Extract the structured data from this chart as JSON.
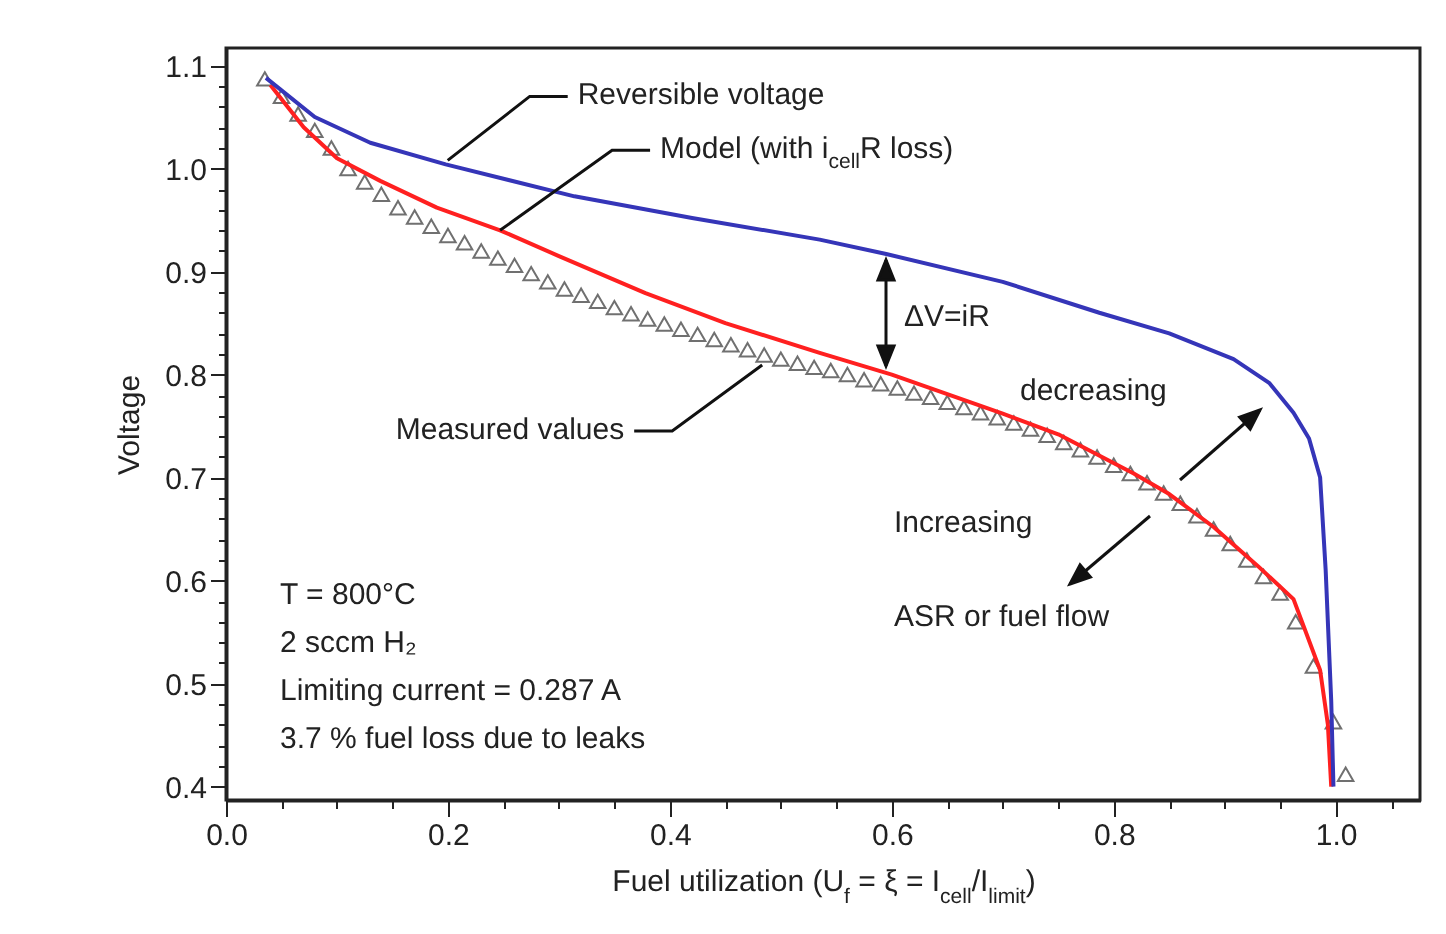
{
  "chart_data": {
    "type": "line",
    "xlabel": "Fuel utilization (U$_{f}$ = ξ = I$_{cell}$/I$_{limit}$)",
    "ylabel": "Voltage",
    "xlim": [
      0,
      1.076
    ],
    "ylim": [
      0.387,
      1.117
    ],
    "xticks": [
      {
        "value": 0,
        "label": "0.0"
      },
      {
        "value": 0.05,
        "label": null
      },
      {
        "value": 0.1,
        "label": null
      },
      {
        "value": 0.15,
        "label": null
      },
      0.2,
      {
        "value": 0.25,
        "label": null
      },
      {
        "value": 0.3,
        "label": null
      },
      {
        "value": 0.35,
        "label": null
      },
      0.4,
      {
        "value": 0.45,
        "label": null
      },
      {
        "value": 0.5,
        "label": null
      },
      {
        "value": 0.55,
        "label": null
      },
      0.6,
      {
        "value": 0.65,
        "label": null
      },
      {
        "value": 0.7,
        "label": null
      },
      {
        "value": 0.75,
        "label": null
      },
      0.8,
      {
        "value": 0.85,
        "label": null
      },
      {
        "value": 0.9,
        "label": null
      },
      {
        "value": 0.95,
        "label": null
      },
      {
        "value": 1,
        "label": "1.0"
      },
      {
        "value": 1.05,
        "label": null
      }
    ],
    "yticks": [
      0.4,
      {
        "value": 0.42,
        "label": null
      },
      {
        "value": 0.44,
        "label": null
      },
      {
        "value": 0.46,
        "label": null
      },
      {
        "value": 0.48,
        "label": null
      },
      0.5,
      {
        "value": 0.52,
        "label": null
      },
      {
        "value": 0.54,
        "label": null
      },
      {
        "value": 0.56,
        "label": null
      },
      {
        "value": 0.58,
        "label": null
      },
      0.6,
      {
        "value": 0.62,
        "label": null
      },
      {
        "value": 0.64,
        "label": null
      },
      {
        "value": 0.66,
        "label": null
      },
      {
        "value": 0.68,
        "label": null
      },
      0.7,
      {
        "value": 0.72,
        "label": null
      },
      {
        "value": 0.74,
        "label": null
      },
      {
        "value": 0.76,
        "label": null
      },
      {
        "value": 0.78,
        "label": null
      },
      0.8,
      {
        "value": 0.82,
        "label": null
      },
      {
        "value": 0.84,
        "label": null
      },
      {
        "value": 0.86,
        "label": null
      },
      {
        "value": 0.88,
        "label": null
      },
      0.9,
      {
        "value": 0.92,
        "label": null
      },
      {
        "value": 0.94,
        "label": null
      },
      {
        "value": 0.96,
        "label": null
      },
      {
        "value": 0.98,
        "label": null
      },
      {
        "value": 1,
        "label": "1.0"
      },
      {
        "value": 1.02,
        "label": null
      },
      {
        "value": 1.04,
        "label": null
      },
      {
        "value": 1.06,
        "label": null
      },
      {
        "value": 1.08,
        "label": null
      },
      1.1
    ],
    "series": [
      {
        "name": "Measured values",
        "type": "scatter",
        "marker": "triangle",
        "color": "#707070",
        "x": [
          0.035,
          0.05,
          0.065,
          0.08,
          0.095,
          0.11,
          0.125,
          0.14,
          0.155,
          0.17,
          0.185,
          0.2,
          0.215,
          0.23,
          0.245,
          0.26,
          0.275,
          0.29,
          0.305,
          0.32,
          0.335,
          0.35,
          0.365,
          0.38,
          0.395,
          0.41,
          0.425,
          0.44,
          0.455,
          0.47,
          0.485,
          0.5,
          0.515,
          0.53,
          0.545,
          0.56,
          0.575,
          0.59,
          0.605,
          0.62,
          0.635,
          0.65,
          0.665,
          0.68,
          0.695,
          0.71,
          0.725,
          0.74,
          0.755,
          0.77,
          0.785,
          0.8,
          0.815,
          0.83,
          0.845,
          0.86,
          0.875,
          0.89,
          0.905,
          0.92,
          0.935,
          0.95,
          0.964,
          0.98,
          0.998,
          1.009
        ],
        "values": [
          1.087,
          1.07,
          1.053,
          1.037,
          1.02,
          1.0,
          0.987,
          0.975,
          0.962,
          0.953,
          0.944,
          0.935,
          0.928,
          0.92,
          0.913,
          0.906,
          0.898,
          0.89,
          0.883,
          0.877,
          0.871,
          0.865,
          0.859,
          0.854,
          0.849,
          0.844,
          0.839,
          0.834,
          0.829,
          0.824,
          0.819,
          0.815,
          0.811,
          0.807,
          0.804,
          0.8,
          0.795,
          0.791,
          0.787,
          0.782,
          0.778,
          0.773,
          0.768,
          0.763,
          0.758,
          0.753,
          0.747,
          0.741,
          0.734,
          0.727,
          0.72,
          0.712,
          0.704,
          0.695,
          0.685,
          0.675,
          0.663,
          0.65,
          0.636,
          0.62,
          0.604,
          0.588,
          0.56,
          0.517,
          0.463,
          0.412
        ]
      },
      {
        "color": "#ff2020",
        "x": [
          0.04,
          0.07,
          0.1,
          0.139,
          0.19,
          0.247,
          0.3,
          0.378,
          0.45,
          0.535,
          0.6,
          0.7,
          0.75,
          0.818,
          0.85,
          0.89,
          0.93,
          0.962,
          0.986,
          0.993,
          0.996
        ],
        "values": [
          1.081,
          1.04,
          1.01,
          0.988,
          0.962,
          0.94,
          0.915,
          0.879,
          0.85,
          0.821,
          0.8,
          0.762,
          0.742,
          0.704,
          0.684,
          0.652,
          0.614,
          0.582,
          0.513,
          0.46,
          0.4
        ]
      },
      {
        "name": "Reversible voltage",
        "color": "#3535b8",
        "x": [
          0.036,
          0.08,
          0.13,
          0.198,
          0.314,
          0.42,
          0.535,
          0.595,
          0.7,
          0.787,
          0.85,
          0.908,
          0.94,
          0.962,
          0.976,
          0.986,
          0.991,
          0.996,
          0.998
        ],
        "values": [
          1.088,
          1.05,
          1.025,
          1.004,
          0.973,
          0.952,
          0.931,
          0.917,
          0.89,
          0.86,
          0.84,
          0.815,
          0.792,
          0.763,
          0.738,
          0.7,
          0.61,
          0.483,
          0.4
        ]
      }
    ],
    "annotations": [
      {
        "text": "Model (with i$_{cell}$R loss)",
        "x": 0.247,
        "y": 0.94
      },
      "ΔV=iR",
      "decreasing",
      "Increasing",
      "ASR or fuel flow",
      "T = 800°C",
      "2 sccm H₂",
      "Limiting current = 0.287 A",
      "3.7 % fuel loss due to leaks"
    ]
  }
}
